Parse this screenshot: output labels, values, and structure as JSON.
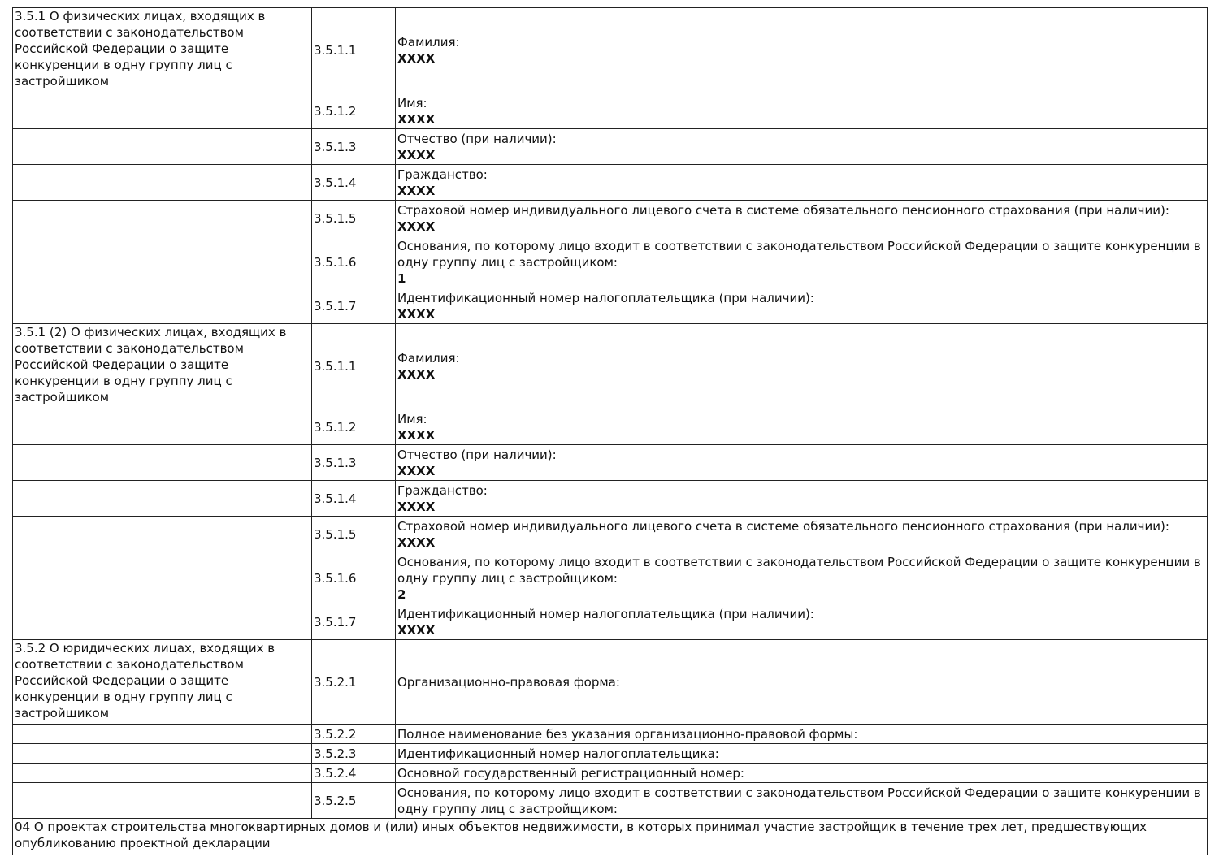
{
  "sections": [
    {
      "title": "3.5.1 О физических лицах, входящих в соответствии с законодательством Российской Федерации о защите конкуренции в одну группу лиц с застройщиком",
      "rows": [
        {
          "code": "3.5.1.1",
          "label": "Фамилия:",
          "value": "XXXX"
        },
        {
          "code": "3.5.1.2",
          "label": "Имя:",
          "value": "XXXX"
        },
        {
          "code": "3.5.1.3",
          "label": "Отчество (при наличии):",
          "value": "XXXX"
        },
        {
          "code": "3.5.1.4",
          "label": "Гражданство:",
          "value": "XXXX"
        },
        {
          "code": "3.5.1.5",
          "label": "Страховой номер индивидуального лицевого счета в системе обязательного пенсионного страхования (при наличии):",
          "value": "XXXX"
        },
        {
          "code": "3.5.1.6",
          "label": "Основания, по которому лицо входит в соответствии с законодательством Российской Федерации о защите конкуренции в одну группу лиц с застройщиком:",
          "value": "1"
        },
        {
          "code": "3.5.1.7",
          "label": "Идентификационный номер налогоплательщика (при наличии):",
          "value": "XXXX"
        }
      ]
    },
    {
      "title": "3.5.1 (2) О физических лицах, входящих в соответствии с законодательством Российской Федерации о защите конкуренции в одну группу лиц с застройщиком",
      "rows": [
        {
          "code": "3.5.1.1",
          "label": "Фамилия:",
          "value": "XXXX"
        },
        {
          "code": "3.5.1.2",
          "label": "Имя:",
          "value": "XXXX"
        },
        {
          "code": "3.5.1.3",
          "label": "Отчество (при наличии):",
          "value": "XXXX"
        },
        {
          "code": "3.5.1.4",
          "label": "Гражданство:",
          "value": "XXXX"
        },
        {
          "code": "3.5.1.5",
          "label": "Страховой номер индивидуального лицевого счета в системе обязательного пенсионного страхования (при наличии):",
          "value": "XXXX"
        },
        {
          "code": "3.5.1.6",
          "label": "Основания, по которому лицо входит в соответствии с законодательством Российской Федерации о защите конкуренции в одну группу лиц с застройщиком:",
          "value": "2"
        },
        {
          "code": "3.5.1.7",
          "label": "Идентификационный номер налогоплательщика (при наличии):",
          "value": "XXXX"
        }
      ]
    },
    {
      "title": "3.5.2 О юридических лицах, входящих в соответствии с законодательством Российской Федерации о защите конкуренции в одну группу лиц с застройщиком",
      "rows": [
        {
          "code": "3.5.2.1",
          "label": "Организационно-правовая форма:",
          "value": ""
        },
        {
          "code": "3.5.2.2",
          "label": "Полное наименование без указания организационно-правовой формы:",
          "value": ""
        },
        {
          "code": "3.5.2.3",
          "label": "Идентификационный номер налогоплательщика:",
          "value": ""
        },
        {
          "code": "3.5.2.4",
          "label": "Основной государственный регистрационный номер:",
          "value": ""
        },
        {
          "code": "3.5.2.5",
          "label": "Основания, по которому лицо входит в соответствии с законодательством Российской Федерации о защите конкуренции в одну группу лиц с застройщиком:",
          "value": ""
        }
      ]
    }
  ],
  "footer_section": "04 О проектах строительства многоквартирных домов и (или) иных объектов недвижимости, в которых принимал участие застройщик в течение трех лет, предшествующих опубликованию проектной декларации"
}
